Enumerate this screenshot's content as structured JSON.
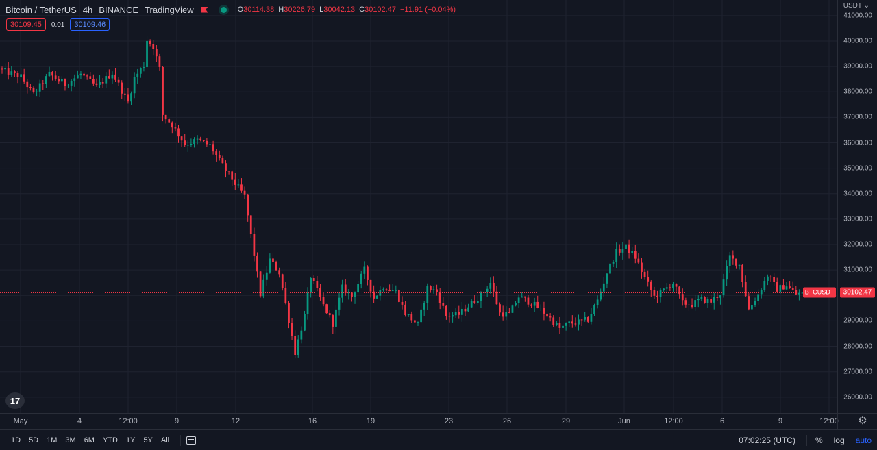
{
  "legend": {
    "symbol": "Bitcoin / TetherUS",
    "interval": "4h",
    "exchange": "BINANCE",
    "source": "TradingView",
    "ohlc": [
      {
        "label": "O",
        "value": "30114.38"
      },
      {
        "label": "H",
        "value": "30226.79"
      },
      {
        "label": "L",
        "value": "30042.13"
      },
      {
        "label": "C",
        "value": "30102.47"
      },
      {
        "label": "",
        "value": "−11.91 (−0.04%)"
      }
    ]
  },
  "quote": {
    "bid": "30109.45",
    "spread": "0.01",
    "ask": "30109.46"
  },
  "price_axis": {
    "currency": "USDT",
    "labels": [
      "41000.00",
      "40000.00",
      "39000.00",
      "38000.00",
      "37000.00",
      "36000.00",
      "35000.00",
      "34000.00",
      "33000.00",
      "32000.00",
      "31000.00",
      "30000.00",
      "29000.00",
      "28000.00",
      "27000.00",
      "26000.00"
    ],
    "current_price": "30102.47",
    "symbol_tag": "BTCUSDT"
  },
  "time_axis": {
    "labels": [
      "May",
      "4",
      "12:00",
      "9",
      "12",
      "16",
      "19",
      "23",
      "26",
      "29",
      "Jun",
      "12:00",
      "6",
      "9",
      "12:00"
    ]
  },
  "toolbar": {
    "periods": [
      "1D",
      "5D",
      "1M",
      "3M",
      "6M",
      "YTD",
      "1Y",
      "5Y",
      "All"
    ],
    "clock": "07:02:25 (UTC)",
    "percent_label": "%",
    "log_label": "log",
    "auto_label": "auto"
  },
  "logo_text": "17",
  "colors": {
    "up": "#089981",
    "down": "#f23645",
    "background": "#131722",
    "grid": "#1f2330",
    "accent": "#2962ff"
  },
  "icons": [
    "flag-icon",
    "live-dot-icon",
    "tradingview-logo",
    "date-range-icon",
    "gear-icon",
    "chevron-down-icon"
  ],
  "chart_data": {
    "type": "candlestick",
    "symbol": "BTCUSDT",
    "interval": "4h",
    "ylim": [
      25500,
      41200
    ],
    "last_close": 30102.47,
    "x_labels": [
      "May",
      "4",
      "12:00",
      "9",
      "12",
      "16",
      "19",
      "23",
      "26",
      "29",
      "Jun",
      "12:00",
      "6",
      "9",
      "12:00"
    ],
    "close_path": [
      [
        0,
        38850
      ],
      [
        6,
        38600
      ],
      [
        10,
        37900
      ],
      [
        15,
        38700
      ],
      [
        20,
        38300
      ],
      [
        25,
        38700
      ],
      [
        30,
        38200
      ],
      [
        35,
        38750
      ],
      [
        40,
        37600
      ],
      [
        42,
        38550
      ],
      [
        45,
        39050
      ],
      [
        46,
        40050
      ],
      [
        48,
        39800
      ],
      [
        50,
        38900
      ],
      [
        51,
        37100
      ],
      [
        54,
        36700
      ],
      [
        58,
        35950
      ],
      [
        62,
        36100
      ],
      [
        66,
        35900
      ],
      [
        70,
        35100
      ],
      [
        74,
        34400
      ],
      [
        77,
        33900
      ],
      [
        80,
        31600
      ],
      [
        82,
        30050
      ],
      [
        85,
        31400
      ],
      [
        88,
        30900
      ],
      [
        91,
        29050
      ],
      [
        93,
        27750
      ],
      [
        96,
        29200
      ],
      [
        98,
        30750
      ],
      [
        102,
        29600
      ],
      [
        105,
        28900
      ],
      [
        108,
        30300
      ],
      [
        111,
        29950
      ],
      [
        115,
        31000
      ],
      [
        118,
        29900
      ],
      [
        121,
        30350
      ],
      [
        125,
        30150
      ],
      [
        128,
        29300
      ],
      [
        132,
        28850
      ],
      [
        135,
        30300
      ],
      [
        138,
        30150
      ],
      [
        141,
        29200
      ],
      [
        145,
        29250
      ],
      [
        149,
        29700
      ],
      [
        152,
        30000
      ],
      [
        155,
        30500
      ],
      [
        158,
        29300
      ],
      [
        161,
        29250
      ],
      [
        164,
        29950
      ],
      [
        168,
        29700
      ],
      [
        171,
        29450
      ],
      [
        174,
        29100
      ],
      [
        177,
        28700
      ],
      [
        180,
        28900
      ],
      [
        183,
        28950
      ],
      [
        186,
        29050
      ],
      [
        189,
        29800
      ],
      [
        192,
        30900
      ],
      [
        195,
        31700
      ],
      [
        198,
        31900
      ],
      [
        201,
        31500
      ],
      [
        204,
        30700
      ],
      [
        207,
        29950
      ],
      [
        210,
        30200
      ],
      [
        213,
        30500
      ],
      [
        216,
        29700
      ],
      [
        219,
        29650
      ],
      [
        222,
        29850
      ],
      [
        225,
        29750
      ],
      [
        228,
        30100
      ],
      [
        231,
        31500
      ],
      [
        234,
        31200
      ],
      [
        237,
        29450
      ],
      [
        240,
        30050
      ],
      [
        243,
        30800
      ],
      [
        246,
        30250
      ],
      [
        249,
        30400
      ],
      [
        252,
        30050
      ],
      [
        254,
        30102
      ]
    ]
  }
}
